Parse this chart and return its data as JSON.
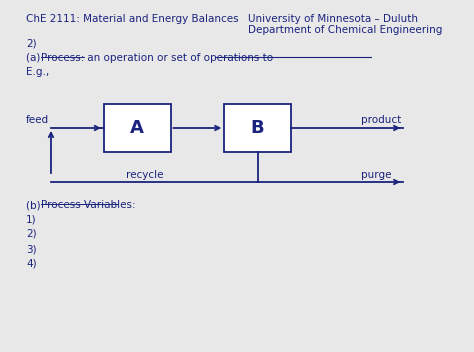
{
  "title_left": "ChE 2111: Material and Energy Balances",
  "title_right_line1": "University of Minnesota – Duluth",
  "title_right_line2": "Department of Chemical Engineering",
  "section_num": "2)",
  "part_a_label": "(a) ",
  "part_a_underline": "Process:",
  "part_a_text": " an operation or set of operations to ",
  "eg_label": "E.g.,",
  "box_A_label": "A",
  "box_B_label": "B",
  "feed_label": "feed",
  "product_label": "product",
  "recycle_label": "recycle",
  "purge_label": "purge",
  "part_b_label": "(b) ",
  "part_b_underline": "Process Variables:",
  "list_items": [
    "1)",
    "2)",
    "3)",
    "4)"
  ],
  "text_color": "#1a237e",
  "box_color": "#1a237e",
  "bg_color": "#e8e8e8",
  "font_size_header": 7.5,
  "font_size_body": 7.5,
  "font_size_box": 13
}
